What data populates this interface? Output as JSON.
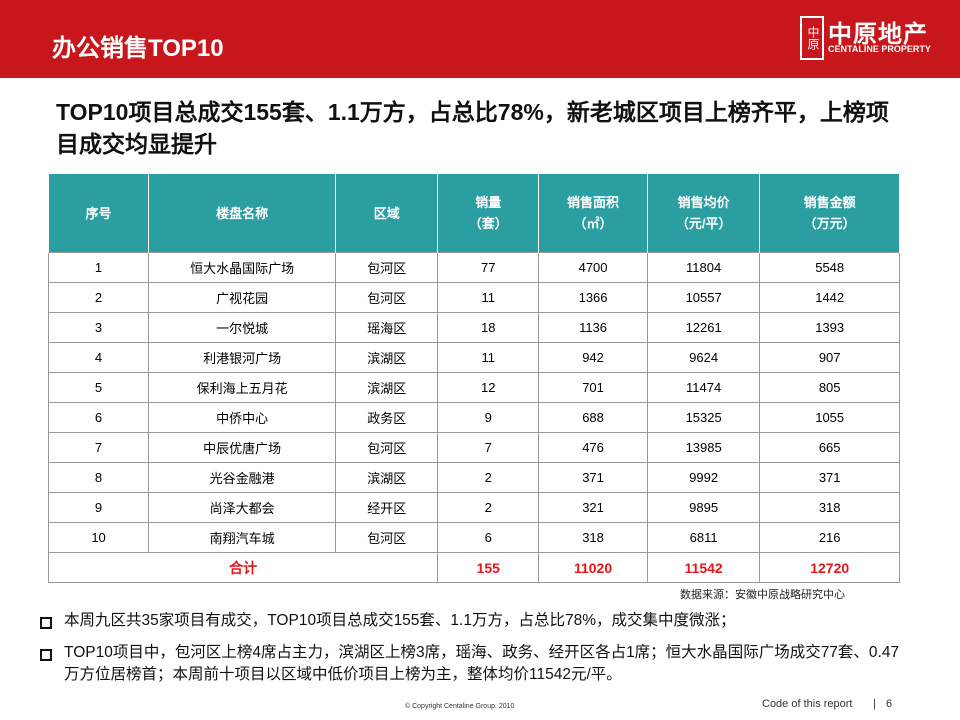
{
  "header": {
    "title": "办公销售TOP10",
    "logo": {
      "mark": "中原",
      "name": "中原地产",
      "english": "CENTALINE PROPERTY"
    }
  },
  "headline": "TOP10项目总成交155套、1.1万方，占总比78%，新老城区项目上榜齐平，上榜项目成交均显提升",
  "table": {
    "columns": [
      [
        "序号"
      ],
      [
        "楼盘名称"
      ],
      [
        "区域"
      ],
      [
        "销量",
        "（套）"
      ],
      [
        "销售面积",
        "（㎡）"
      ],
      [
        "销售均价",
        "（元/平）"
      ],
      [
        "销售金额",
        "（万元）"
      ]
    ],
    "rows": [
      [
        1,
        "恒大水晶国际广场",
        "包河区",
        77,
        4700,
        11804,
        5548
      ],
      [
        2,
        "广视花园",
        "包河区",
        11,
        1366,
        10557,
        1442
      ],
      [
        3,
        "一尔悦城",
        "瑶海区",
        18,
        1136,
        12261,
        1393
      ],
      [
        4,
        "利港银河广场",
        "滨湖区",
        11,
        942,
        9624,
        907
      ],
      [
        5,
        "保利海上五月花",
        "滨湖区",
        12,
        701,
        11474,
        805
      ],
      [
        6,
        "中侨中心",
        "政务区",
        9,
        688,
        15325,
        1055
      ],
      [
        7,
        "中辰优唐广场",
        "包河区",
        7,
        476,
        13985,
        665
      ],
      [
        8,
        "光谷金融港",
        "滨湖区",
        2,
        371,
        9992,
        371
      ],
      [
        9,
        "尚泽大都会",
        "经开区",
        2,
        321,
        9895,
        318
      ],
      [
        10,
        "南翔汽车城",
        "包河区",
        6,
        318,
        6811,
        216
      ]
    ],
    "total": [
      "合计",
      155,
      11020,
      11542,
      12720
    ]
  },
  "source": "数据来源：安徽中原战略研究中心",
  "bullets": [
    "本周九区共35家项目有成交，TOP10项目总成交155套、1.1万方，占总比78%，成交集中度微涨；",
    "TOP10项目中，包河区上榜4席占主力，滨湖区上榜3席，瑶海、政务、经开区各占1席；恒大水晶国际广场成交77套、0.47万方位居榜首；本周前十项目以区域中低价项目上榜为主，整体均价11542元/平。"
  ],
  "footer": {
    "copyright": "© Copyright  Centaline Group. 2010",
    "code": "Code of this report",
    "page": 6
  }
}
